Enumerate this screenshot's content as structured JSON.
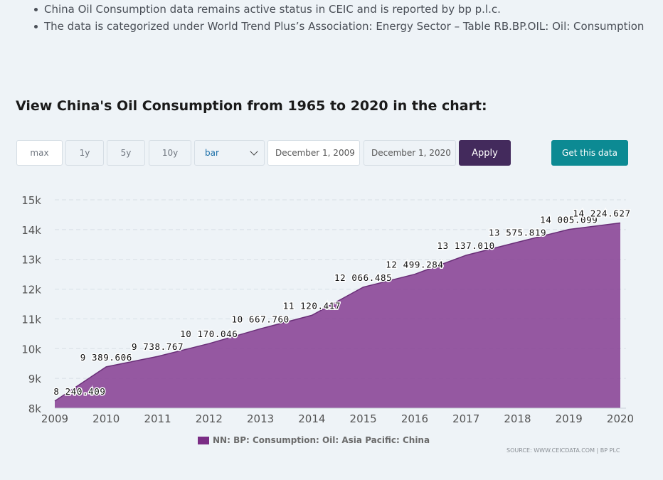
{
  "bullets": [
    "China Oil Consumption data remains active status in CEIC and is reported by bp p.l.c.",
    "The data is categorized under World Trend Plus’s Association: Energy Sector – Table RB.BP.OIL: Oil: Consumption"
  ],
  "heading": "View China's Oil Consumption from 1965 to 2020 in the chart:",
  "controls": {
    "range_buttons": [
      "max",
      "1y",
      "5y",
      "10y"
    ],
    "chart_type": "bar",
    "start_date": "December 1, 2009",
    "end_date": "December 1, 2020",
    "apply_label": "Apply",
    "get_data_label": "Get this data"
  },
  "colors": {
    "area_fill": "#8b4797",
    "area_line": "#6a2f78",
    "legend_swatch": "#7b2d85",
    "apply_bg": "#432a5c",
    "get_data_bg": "#0c8a93"
  },
  "chart_data": {
    "type": "area",
    "x": [
      2009,
      2010,
      2011,
      2012,
      2013,
      2014,
      2015,
      2016,
      2017,
      2018,
      2019,
      2020
    ],
    "series": [
      {
        "name": "NN: BP: Consumption: Oil: Asia Pacific: China",
        "values": [
          8240.409,
          9389.606,
          9738.767,
          10170.046,
          10667.76,
          11120.417,
          12066.485,
          12499.284,
          13137.01,
          13575.819,
          14005.099,
          14224.627
        ],
        "labels": [
          "8 240.409",
          "9 389.606",
          "9 738.767",
          "10 170.046",
          "10 667.760",
          "11 120.417",
          "12 066.485",
          "12 499.284",
          "13 137.010",
          "13 575.819",
          "14 005.099",
          "14 224.627"
        ]
      }
    ],
    "yticks": [
      "8k",
      "9k",
      "10k",
      "11k",
      "12k",
      "13k",
      "14k",
      "15k"
    ],
    "ylim": [
      8000,
      15000
    ],
    "xlim": [
      2009,
      2020
    ],
    "grid": true,
    "legend_position": "bottom"
  },
  "source": "SOURCE: WWW.CEICDATA.COM | BP PLC"
}
